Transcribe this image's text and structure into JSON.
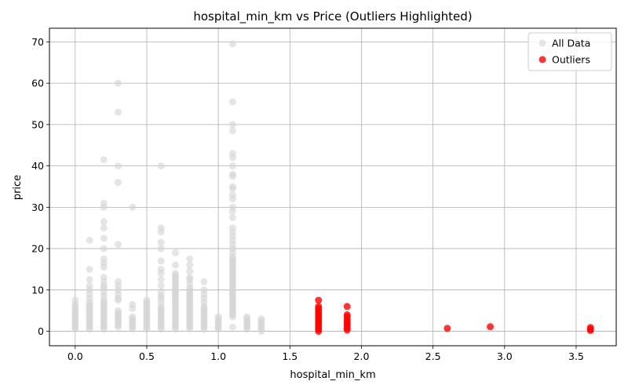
{
  "chart_data": {
    "type": "scatter",
    "title": "hospital_min_km vs Price (Outliers Highlighted)",
    "xlabel": "hospital_min_km",
    "ylabel": "price",
    "xlim": [
      -0.18,
      3.78
    ],
    "ylim": [
      -3.5,
      73.3
    ],
    "xticks": [
      "0.0",
      "0.5",
      "1.0",
      "1.5",
      "2.0",
      "2.5",
      "3.0",
      "3.5"
    ],
    "yticks": [
      "0",
      "10",
      "20",
      "30",
      "40",
      "50",
      "60",
      "70"
    ],
    "grid": true,
    "legend_position": "top-right",
    "series": [
      {
        "name": "All Data",
        "color": "#d3d3d3",
        "points": [
          [
            0.0,
            0.5
          ],
          [
            0.0,
            1.0
          ],
          [
            0.0,
            1.5
          ],
          [
            0.0,
            2.0
          ],
          [
            0.0,
            2.5
          ],
          [
            0.0,
            3.0
          ],
          [
            0.0,
            3.5
          ],
          [
            0.0,
            4.0
          ],
          [
            0.0,
            4.5
          ],
          [
            0.0,
            5.0
          ],
          [
            0.0,
            5.5
          ],
          [
            0.0,
            6.0
          ],
          [
            0.0,
            6.5
          ],
          [
            0.0,
            7.5
          ],
          [
            0.1,
            0.5
          ],
          [
            0.1,
            1.0
          ],
          [
            0.1,
            1.5
          ],
          [
            0.1,
            2.0
          ],
          [
            0.1,
            2.5
          ],
          [
            0.1,
            3.0
          ],
          [
            0.1,
            3.5
          ],
          [
            0.1,
            4.0
          ],
          [
            0.1,
            4.5
          ],
          [
            0.1,
            5.0
          ],
          [
            0.1,
            5.5
          ],
          [
            0.1,
            6.0
          ],
          [
            0.1,
            6.5
          ],
          [
            0.1,
            7.0
          ],
          [
            0.1,
            8.0
          ],
          [
            0.1,
            9.0
          ],
          [
            0.1,
            10.0
          ],
          [
            0.1,
            11.0
          ],
          [
            0.1,
            12.5
          ],
          [
            0.1,
            15.0
          ],
          [
            0.1,
            22.0
          ],
          [
            0.2,
            0.5
          ],
          [
            0.2,
            1.0
          ],
          [
            0.2,
            1.5
          ],
          [
            0.2,
            2.0
          ],
          [
            0.2,
            2.5
          ],
          [
            0.2,
            3.0
          ],
          [
            0.2,
            3.5
          ],
          [
            0.2,
            4.0
          ],
          [
            0.2,
            4.5
          ],
          [
            0.2,
            5.0
          ],
          [
            0.2,
            5.5
          ],
          [
            0.2,
            6.0
          ],
          [
            0.2,
            6.5
          ],
          [
            0.2,
            7.0
          ],
          [
            0.2,
            7.5
          ],
          [
            0.2,
            8.5
          ],
          [
            0.2,
            9.5
          ],
          [
            0.2,
            10.5
          ],
          [
            0.2,
            11.0
          ],
          [
            0.2,
            12.0
          ],
          [
            0.2,
            13.0
          ],
          [
            0.2,
            15.5
          ],
          [
            0.2,
            16.5
          ],
          [
            0.2,
            17.5
          ],
          [
            0.2,
            20.0
          ],
          [
            0.2,
            22.5
          ],
          [
            0.2,
            25.0
          ],
          [
            0.2,
            26.5
          ],
          [
            0.2,
            30.0
          ],
          [
            0.2,
            31.0
          ],
          [
            0.2,
            41.5
          ],
          [
            0.3,
            1.0
          ],
          [
            0.3,
            1.5
          ],
          [
            0.3,
            2.0
          ],
          [
            0.3,
            2.5
          ],
          [
            0.3,
            3.0
          ],
          [
            0.3,
            3.5
          ],
          [
            0.3,
            4.0
          ],
          [
            0.3,
            4.5
          ],
          [
            0.3,
            5.0
          ],
          [
            0.3,
            7.5
          ],
          [
            0.3,
            8.0
          ],
          [
            0.3,
            9.0
          ],
          [
            0.3,
            10.0
          ],
          [
            0.3,
            11.0
          ],
          [
            0.3,
            12.0
          ],
          [
            0.3,
            21.0
          ],
          [
            0.3,
            36.0
          ],
          [
            0.3,
            40.0
          ],
          [
            0.3,
            53.0
          ],
          [
            0.3,
            60.0
          ],
          [
            0.4,
            0.5
          ],
          [
            0.4,
            1.0
          ],
          [
            0.4,
            1.5
          ],
          [
            0.4,
            2.0
          ],
          [
            0.4,
            2.5
          ],
          [
            0.4,
            3.0
          ],
          [
            0.4,
            3.5
          ],
          [
            0.4,
            5.5
          ],
          [
            0.4,
            6.5
          ],
          [
            0.4,
            30.0
          ],
          [
            0.5,
            0.5
          ],
          [
            0.5,
            1.0
          ],
          [
            0.5,
            1.5
          ],
          [
            0.5,
            2.0
          ],
          [
            0.5,
            2.5
          ],
          [
            0.5,
            3.0
          ],
          [
            0.5,
            3.5
          ],
          [
            0.5,
            4.0
          ],
          [
            0.5,
            4.5
          ],
          [
            0.5,
            5.0
          ],
          [
            0.5,
            5.5
          ],
          [
            0.5,
            6.0
          ],
          [
            0.5,
            6.5
          ],
          [
            0.5,
            7.0
          ],
          [
            0.5,
            7.5
          ],
          [
            0.6,
            0.5
          ],
          [
            0.6,
            1.0
          ],
          [
            0.6,
            1.5
          ],
          [
            0.6,
            2.0
          ],
          [
            0.6,
            2.5
          ],
          [
            0.6,
            3.0
          ],
          [
            0.6,
            3.5
          ],
          [
            0.6,
            4.0
          ],
          [
            0.6,
            4.5
          ],
          [
            0.6,
            5.0
          ],
          [
            0.6,
            5.5
          ],
          [
            0.6,
            6.0
          ],
          [
            0.6,
            7.0
          ],
          [
            0.6,
            8.0
          ],
          [
            0.6,
            8.5
          ],
          [
            0.6,
            9.5
          ],
          [
            0.6,
            11.0
          ],
          [
            0.6,
            12.5
          ],
          [
            0.6,
            14.0
          ],
          [
            0.6,
            15.0
          ],
          [
            0.6,
            17.0
          ],
          [
            0.6,
            20.0
          ],
          [
            0.6,
            21.5
          ],
          [
            0.6,
            24.0
          ],
          [
            0.6,
            25.0
          ],
          [
            0.6,
            40.0
          ],
          [
            0.7,
            0.5
          ],
          [
            0.7,
            1.0
          ],
          [
            0.7,
            1.5
          ],
          [
            0.7,
            2.0
          ],
          [
            0.7,
            2.5
          ],
          [
            0.7,
            3.0
          ],
          [
            0.7,
            3.5
          ],
          [
            0.7,
            4.0
          ],
          [
            0.7,
            4.5
          ],
          [
            0.7,
            5.0
          ],
          [
            0.7,
            5.5
          ],
          [
            0.7,
            6.0
          ],
          [
            0.7,
            6.5
          ],
          [
            0.7,
            7.0
          ],
          [
            0.7,
            7.5
          ],
          [
            0.7,
            8.0
          ],
          [
            0.7,
            8.5
          ],
          [
            0.7,
            9.0
          ],
          [
            0.7,
            9.5
          ],
          [
            0.7,
            10.0
          ],
          [
            0.7,
            10.5
          ],
          [
            0.7,
            11.0
          ],
          [
            0.7,
            11.5
          ],
          [
            0.7,
            12.0
          ],
          [
            0.7,
            12.5
          ],
          [
            0.7,
            13.0
          ],
          [
            0.7,
            13.5
          ],
          [
            0.7,
            14.0
          ],
          [
            0.7,
            16.0
          ],
          [
            0.7,
            19.0
          ],
          [
            0.8,
            0.5
          ],
          [
            0.8,
            1.0
          ],
          [
            0.8,
            1.5
          ],
          [
            0.8,
            2.0
          ],
          [
            0.8,
            2.5
          ],
          [
            0.8,
            3.0
          ],
          [
            0.8,
            3.5
          ],
          [
            0.8,
            4.0
          ],
          [
            0.8,
            4.5
          ],
          [
            0.8,
            5.0
          ],
          [
            0.8,
            5.5
          ],
          [
            0.8,
            6.0
          ],
          [
            0.8,
            6.5
          ],
          [
            0.8,
            7.0
          ],
          [
            0.8,
            7.5
          ],
          [
            0.8,
            8.0
          ],
          [
            0.8,
            8.5
          ],
          [
            0.8,
            9.0
          ],
          [
            0.8,
            9.5
          ],
          [
            0.8,
            10.0
          ],
          [
            0.8,
            10.5
          ],
          [
            0.8,
            11.5
          ],
          [
            0.8,
            12.5
          ],
          [
            0.8,
            13.0
          ],
          [
            0.8,
            14.5
          ],
          [
            0.8,
            16.0
          ],
          [
            0.8,
            17.5
          ],
          [
            0.9,
            0.5
          ],
          [
            0.9,
            1.0
          ],
          [
            0.9,
            1.5
          ],
          [
            0.9,
            2.0
          ],
          [
            0.9,
            2.5
          ],
          [
            0.9,
            3.0
          ],
          [
            0.9,
            3.5
          ],
          [
            0.9,
            4.0
          ],
          [
            0.9,
            4.5
          ],
          [
            0.9,
            5.0
          ],
          [
            0.9,
            5.5
          ],
          [
            0.9,
            6.0
          ],
          [
            0.9,
            7.0
          ],
          [
            0.9,
            8.0
          ],
          [
            0.9,
            9.0
          ],
          [
            0.9,
            10.0
          ],
          [
            0.9,
            12.0
          ],
          [
            1.0,
            0.5
          ],
          [
            1.0,
            1.0
          ],
          [
            1.0,
            1.5
          ],
          [
            1.0,
            2.0
          ],
          [
            1.0,
            2.5
          ],
          [
            1.0,
            3.0
          ],
          [
            1.0,
            3.5
          ],
          [
            1.1,
            1.0
          ],
          [
            1.1,
            3.5
          ],
          [
            1.1,
            4.0
          ],
          [
            1.1,
            4.5
          ],
          [
            1.1,
            5.0
          ],
          [
            1.1,
            5.5
          ],
          [
            1.1,
            6.0
          ],
          [
            1.1,
            6.5
          ],
          [
            1.1,
            7.0
          ],
          [
            1.1,
            7.5
          ],
          [
            1.1,
            8.0
          ],
          [
            1.1,
            8.5
          ],
          [
            1.1,
            9.0
          ],
          [
            1.1,
            9.5
          ],
          [
            1.1,
            10.0
          ],
          [
            1.1,
            10.5
          ],
          [
            1.1,
            11.0
          ],
          [
            1.1,
            11.5
          ],
          [
            1.1,
            12.0
          ],
          [
            1.1,
            12.5
          ],
          [
            1.1,
            13.0
          ],
          [
            1.1,
            13.5
          ],
          [
            1.1,
            14.0
          ],
          [
            1.1,
            14.5
          ],
          [
            1.1,
            15.0
          ],
          [
            1.1,
            15.5
          ],
          [
            1.1,
            16.0
          ],
          [
            1.1,
            16.5
          ],
          [
            1.1,
            17.0
          ],
          [
            1.1,
            17.5
          ],
          [
            1.1,
            18.0
          ],
          [
            1.1,
            19.0
          ],
          [
            1.1,
            20.0
          ],
          [
            1.1,
            21.0
          ],
          [
            1.1,
            22.0
          ],
          [
            1.1,
            23.0
          ],
          [
            1.1,
            24.0
          ],
          [
            1.1,
            25.0
          ],
          [
            1.1,
            27.5
          ],
          [
            1.1,
            29.0
          ],
          [
            1.1,
            30.0
          ],
          [
            1.1,
            32.0
          ],
          [
            1.1,
            33.0
          ],
          [
            1.1,
            34.5
          ],
          [
            1.1,
            35.0
          ],
          [
            1.1,
            37.5
          ],
          [
            1.1,
            38.0
          ],
          [
            1.1,
            40.0
          ],
          [
            1.1,
            42.0
          ],
          [
            1.1,
            43.0
          ],
          [
            1.1,
            48.5
          ],
          [
            1.1,
            50.0
          ],
          [
            1.1,
            55.5
          ],
          [
            1.1,
            69.5
          ],
          [
            1.2,
            0.5
          ],
          [
            1.2,
            1.0
          ],
          [
            1.2,
            1.5
          ],
          [
            1.2,
            2.0
          ],
          [
            1.2,
            2.5
          ],
          [
            1.2,
            3.0
          ],
          [
            1.2,
            3.5
          ],
          [
            1.3,
            0.0
          ],
          [
            1.3,
            0.5
          ],
          [
            1.3,
            1.0
          ],
          [
            1.3,
            1.5
          ],
          [
            1.3,
            2.0
          ],
          [
            1.3,
            2.5
          ],
          [
            1.3,
            3.0
          ]
        ]
      },
      {
        "name": "Outliers",
        "color": "#ff0000",
        "points": [
          [
            1.7,
            0.0
          ],
          [
            1.7,
            0.5
          ],
          [
            1.7,
            1.0
          ],
          [
            1.7,
            1.5
          ],
          [
            1.7,
            2.0
          ],
          [
            1.7,
            2.5
          ],
          [
            1.7,
            3.0
          ],
          [
            1.7,
            3.5
          ],
          [
            1.7,
            4.0
          ],
          [
            1.7,
            4.5
          ],
          [
            1.7,
            5.0
          ],
          [
            1.7,
            5.5
          ],
          [
            1.7,
            6.0
          ],
          [
            1.7,
            7.5
          ],
          [
            1.9,
            0.3
          ],
          [
            1.9,
            0.8
          ],
          [
            1.9,
            1.3
          ],
          [
            1.9,
            1.8
          ],
          [
            1.9,
            2.3
          ],
          [
            1.9,
            2.8
          ],
          [
            1.9,
            3.5
          ],
          [
            1.9,
            4.0
          ],
          [
            1.9,
            6.0
          ],
          [
            2.6,
            0.7
          ],
          [
            2.9,
            1.1
          ],
          [
            3.6,
            0.2
          ],
          [
            3.6,
            0.5
          ],
          [
            3.6,
            0.9
          ]
        ]
      }
    ]
  }
}
